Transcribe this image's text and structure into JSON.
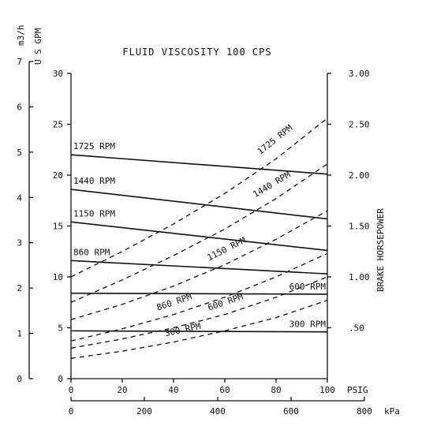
{
  "chart_data": {
    "type": "line",
    "title": "FLUID VISCOSITY 100 CPS",
    "x_axis": {
      "label": "PSIG",
      "range": [
        0,
        100
      ],
      "ticks": [
        0,
        20,
        40,
        60,
        80,
        100
      ]
    },
    "x_axis_secondary": {
      "label": "kPa",
      "range": [
        0,
        800
      ],
      "ticks": [
        0,
        200,
        400,
        600,
        800
      ]
    },
    "y_axis": {
      "label": "U S GPM",
      "range": [
        0,
        30
      ],
      "ticks": [
        0,
        5,
        10,
        15,
        20,
        25,
        30
      ]
    },
    "y_axis_secondary_left": {
      "label": "m3/h",
      "range": [
        0,
        7
      ],
      "ticks": [
        0,
        1,
        2,
        3,
        4,
        5,
        6,
        7
      ]
    },
    "y_axis_right": {
      "label": "BRAKE HORSEPOWER",
      "range": [
        0,
        3
      ],
      "ticks": [
        ".50",
        "1.00",
        "1.50",
        "2.00",
        "2.50",
        "3.00"
      ],
      "tick_values": [
        0.5,
        1.0,
        1.5,
        2.0,
        2.5,
        3.0
      ]
    },
    "flow_series": [
      {
        "name": "1725 RPM",
        "x": [
          0,
          100
        ],
        "y": [
          22.0,
          20.1
        ]
      },
      {
        "name": "1440 RPM",
        "x": [
          0,
          100
        ],
        "y": [
          18.6,
          15.7
        ]
      },
      {
        "name": "1150 RPM",
        "x": [
          0,
          100
        ],
        "y": [
          15.4,
          12.6
        ]
      },
      {
        "name": "860 RPM",
        "x": [
          0,
          100
        ],
        "y": [
          11.6,
          10.3
        ]
      },
      {
        "name": "600 RPM",
        "x": [
          0,
          100
        ],
        "y": [
          8.4,
          8.3
        ]
      },
      {
        "name": "300 RPM",
        "x": [
          0,
          100
        ],
        "y": [
          4.7,
          4.6
        ]
      }
    ],
    "power_series": [
      {
        "name": "1725 RPM",
        "x": [
          0,
          20,
          40,
          60,
          80,
          100
        ],
        "hp": [
          1.0,
          1.25,
          1.52,
          1.82,
          2.16,
          2.56
        ]
      },
      {
        "name": "1440 RPM",
        "x": [
          0,
          20,
          40,
          60,
          80,
          100
        ],
        "hp": [
          0.75,
          0.97,
          1.21,
          1.47,
          1.77,
          2.11
        ]
      },
      {
        "name": "1150 RPM",
        "x": [
          0,
          20,
          40,
          60,
          80,
          100
        ],
        "hp": [
          0.58,
          0.73,
          0.91,
          1.12,
          1.37,
          1.65
        ]
      },
      {
        "name": "860 RPM",
        "x": [
          0,
          20,
          40,
          60,
          80,
          100
        ],
        "hp": [
          0.37,
          0.49,
          0.63,
          0.8,
          1.0,
          1.23
        ]
      },
      {
        "name": "600 RPM",
        "x": [
          0,
          20,
          40,
          60,
          80,
          100
        ],
        "hp": [
          0.3,
          0.39,
          0.5,
          0.63,
          0.8,
          1.0
        ]
      },
      {
        "name": "300 RPM",
        "x": [
          0,
          20,
          40,
          60,
          80,
          100
        ],
        "hp": [
          0.2,
          0.27,
          0.36,
          0.47,
          0.6,
          0.77
        ]
      }
    ]
  }
}
